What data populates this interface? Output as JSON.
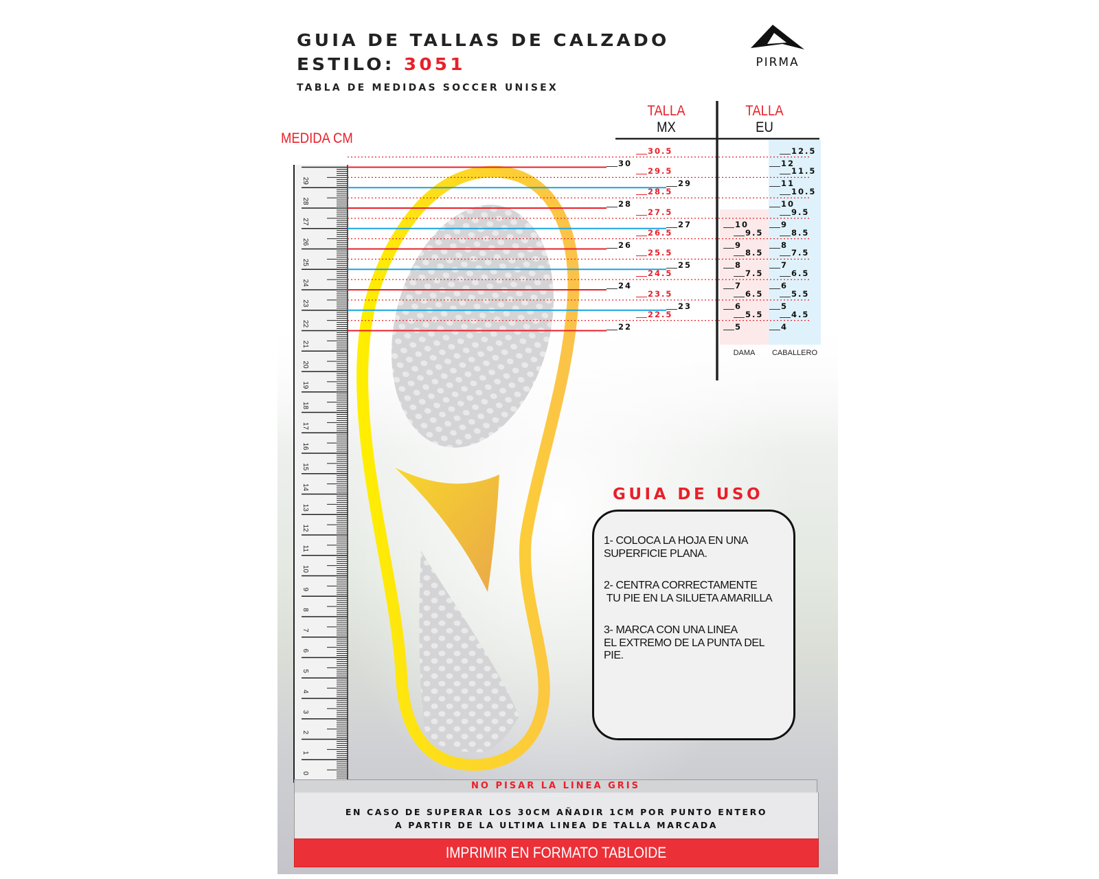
{
  "header": {
    "title": "GUIA DE TALLAS DE CALZADO",
    "style_label": "ESTILO:",
    "style_code": "3051",
    "subtitle": "TABLA DE MEDIDAS SOCCER UNISEX",
    "brand": "PIRMA"
  },
  "measure_label": "MEDIDA CM",
  "columns": {
    "mx": {
      "line1": "TALLA",
      "line2": "MX"
    },
    "eu": {
      "line1": "TALLA",
      "line2": "EU"
    },
    "dama": "DAMA",
    "caballero": "CABALLERO"
  },
  "size_rows": [
    {
      "mx": "30.5",
      "dama": null,
      "caballero": "12.5"
    },
    {
      "mx": "30",
      "dama": null,
      "caballero": "12"
    },
    {
      "mx": "29.5",
      "dama": null,
      "caballero": "11.5"
    },
    {
      "mx": "29",
      "dama": null,
      "caballero": "11"
    },
    {
      "mx": "28.5",
      "dama": null,
      "caballero": "10.5"
    },
    {
      "mx": "28",
      "dama": null,
      "caballero": "10"
    },
    {
      "mx": "27.5",
      "dama": null,
      "caballero": "9.5"
    },
    {
      "mx": "27",
      "dama": "10",
      "caballero": "9"
    },
    {
      "mx": "26.5",
      "dama": "9.5",
      "caballero": "8.5"
    },
    {
      "mx": "26",
      "dama": "9",
      "caballero": "8"
    },
    {
      "mx": "25.5",
      "dama": "8.5",
      "caballero": "7.5"
    },
    {
      "mx": "25",
      "dama": "8",
      "caballero": "7"
    },
    {
      "mx": "24.5",
      "dama": "7.5",
      "caballero": "6.5"
    },
    {
      "mx": "24",
      "dama": "7",
      "caballero": "6"
    },
    {
      "mx": "23.5",
      "dama": "6.5",
      "caballero": "5.5"
    },
    {
      "mx": "23",
      "dama": "6",
      "caballero": "5"
    },
    {
      "mx": "22.5",
      "dama": "5.5",
      "caballero": "4.5"
    },
    {
      "mx": "22",
      "dama": "5",
      "caballero": "4"
    }
  ],
  "ruler_labels": [
    0,
    1,
    2,
    3,
    4,
    5,
    6,
    7,
    8,
    9,
    10,
    11,
    12,
    13,
    14,
    15,
    16,
    17,
    18,
    19,
    20,
    21,
    22,
    23,
    24,
    25,
    26,
    27,
    28,
    29
  ],
  "usage": {
    "title": "GUIA DE USO",
    "steps": [
      [
        "1- COLOCA LA HOJA EN UNA",
        "SUPERFICIE PLANA."
      ],
      [
        "2- CENTRA CORRECTAMENTE",
        " TU PIE EN LA SILUETA AMARILLA"
      ],
      [
        "3- MARCA CON UNA LINEA",
        "EL EXTREMO DE LA PUNTA DEL",
        "PIE."
      ]
    ]
  },
  "footer": {
    "warning": "NO PISAR LA LINEA GRIS",
    "note_line1": "EN CASO DE SUPERAR LOS 30CM AÑADIR 1CM POR PUNTO ENTERO",
    "note_line2": "A PARTIR DE LA ULTIMA LINEA DE TALLA MARCADA",
    "print": "IMPRIMIR EN FORMATO TABLOIDE"
  },
  "colors": {
    "accent_red": "#e8202a",
    "line_blue": "#1aa3e0",
    "silhouette_yellow": "#ffe600",
    "silhouette_orange": "#fbc04a",
    "dama_bg": "#fbe6e6",
    "caballero_bg": "#dcf1fb"
  }
}
